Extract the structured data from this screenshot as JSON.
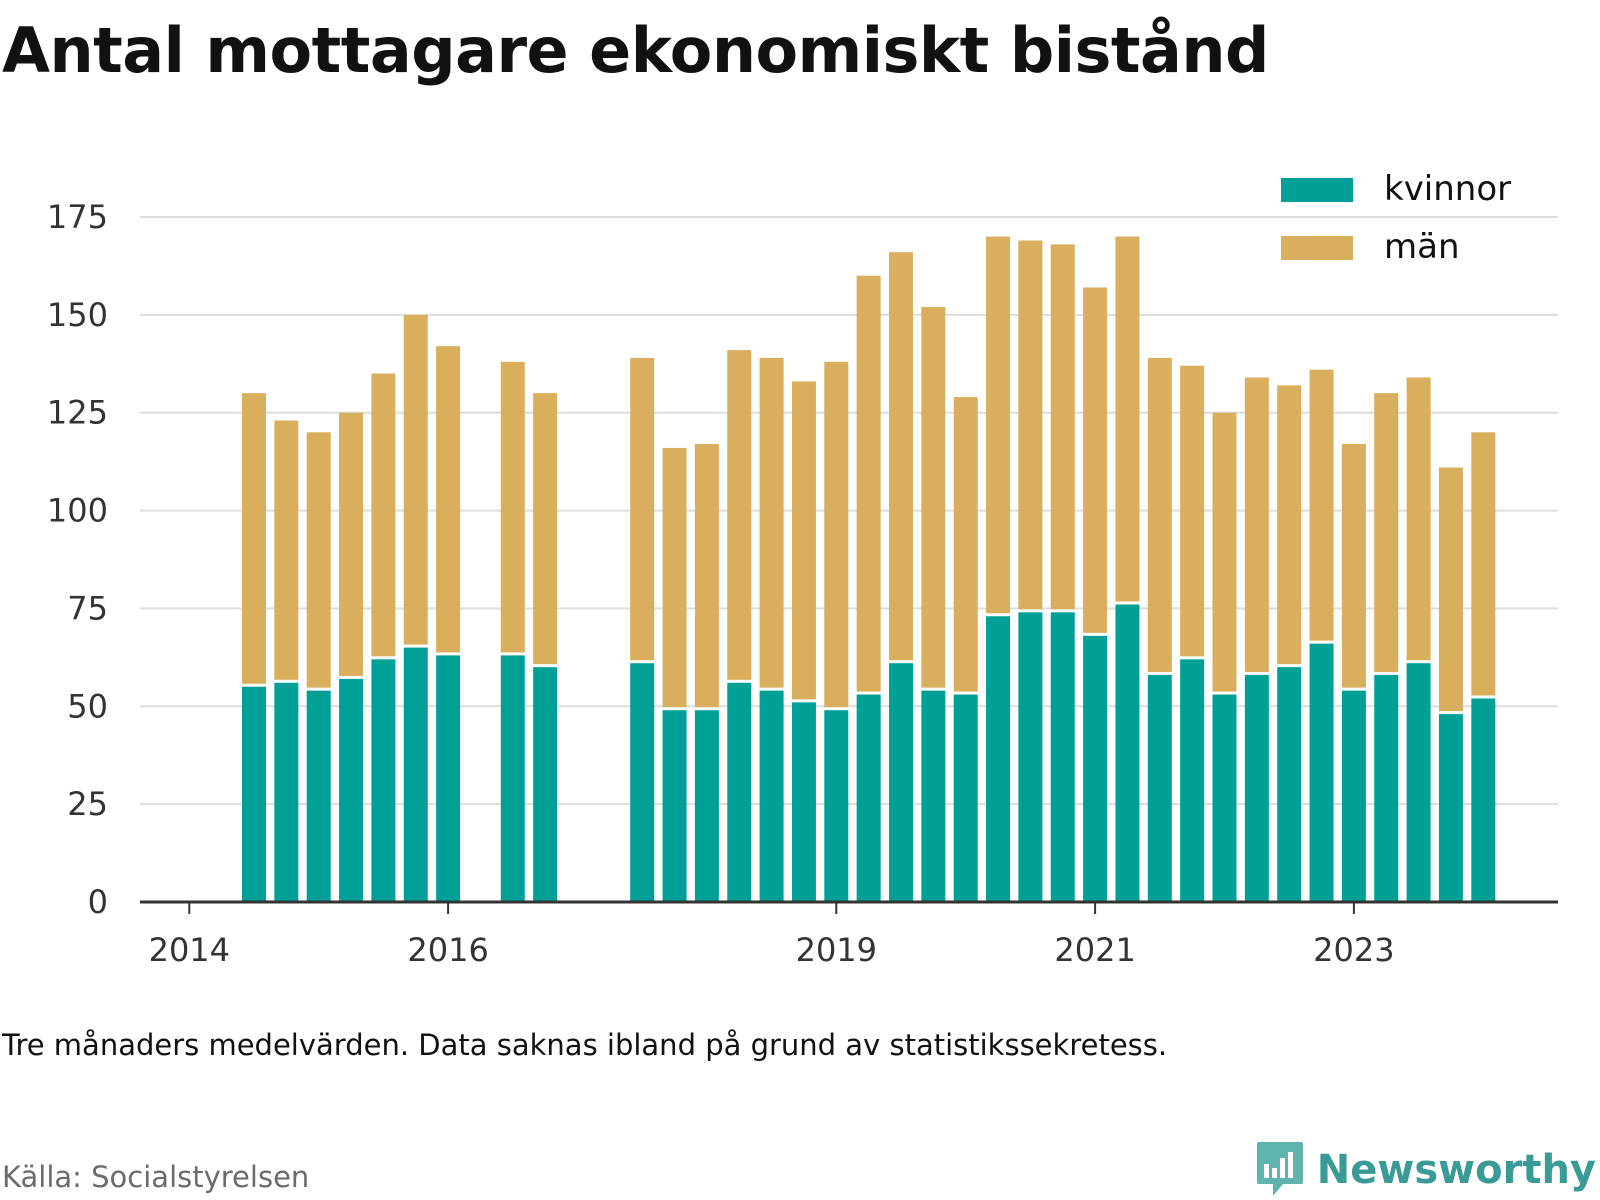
{
  "page": {
    "title": "Antal mottagare ekonomiskt bistånd",
    "note": "Tre månaders medelvärden. Data saknas ibland på grund av statistikssekretess.",
    "source": "Källa: Socialstyrelsen",
    "brand": "Newsworthy",
    "brand_icon": "newsworthy-logo-icon"
  },
  "chart_data": {
    "type": "bar",
    "stacked": true,
    "title": "Antal mottagare ekonomiskt bistånd",
    "xlabel": "",
    "ylabel": "",
    "ylim": [
      0,
      175
    ],
    "yticks": [
      0,
      25,
      50,
      75,
      100,
      125,
      150,
      175
    ],
    "xticks": [
      "2014",
      "2016",
      "2019",
      "2021",
      "2023"
    ],
    "grid": true,
    "legend_position": "top-right",
    "colors": {
      "kvinnor": "#00a096",
      "män": "#d9ae5c",
      "grid": "#dddddd",
      "axis": "#333333"
    },
    "categories": [
      "2014-Q2",
      "2014-Q3",
      "2014-Q4",
      "2015-Q1",
      "2015-Q2",
      "2015-Q3",
      "2015-Q4",
      "2016-Q1",
      "2016-Q2",
      "2016-Q3",
      "2016-Q4",
      "2017-Q1",
      "2017-Q2",
      "2017-Q3",
      "2017-Q4",
      "2018-Q1",
      "2018-Q2",
      "2018-Q3",
      "2018-Q4",
      "2019-Q1",
      "2019-Q2",
      "2019-Q3",
      "2019-Q4",
      "2020-Q1",
      "2020-Q2",
      "2020-Q3",
      "2020-Q4",
      "2021-Q1",
      "2021-Q2",
      "2021-Q3",
      "2021-Q4",
      "2022-Q1",
      "2022-Q2",
      "2022-Q3",
      "2022-Q4",
      "2023-Q1",
      "2023-Q2",
      "2023-Q3",
      "2023-Q4"
    ],
    "series": [
      {
        "name": "kvinnor",
        "values": [
          55,
          56,
          54,
          57,
          62,
          65,
          63,
          null,
          63,
          60,
          null,
          null,
          61,
          49,
          49,
          56,
          54,
          51,
          49,
          53,
          61,
          54,
          53,
          73,
          74,
          74,
          68,
          76,
          58,
          62,
          53,
          58,
          60,
          66,
          54,
          58,
          61,
          48,
          52
        ]
      },
      {
        "name": "män",
        "values": [
          75,
          67,
          66,
          68,
          73,
          85,
          79,
          null,
          75,
          70,
          null,
          null,
          78,
          67,
          68,
          85,
          85,
          82,
          89,
          107,
          105,
          98,
          76,
          97,
          95,
          94,
          89,
          94,
          81,
          75,
          72,
          76,
          72,
          70,
          63,
          72,
          73,
          63,
          68
        ]
      }
    ]
  }
}
